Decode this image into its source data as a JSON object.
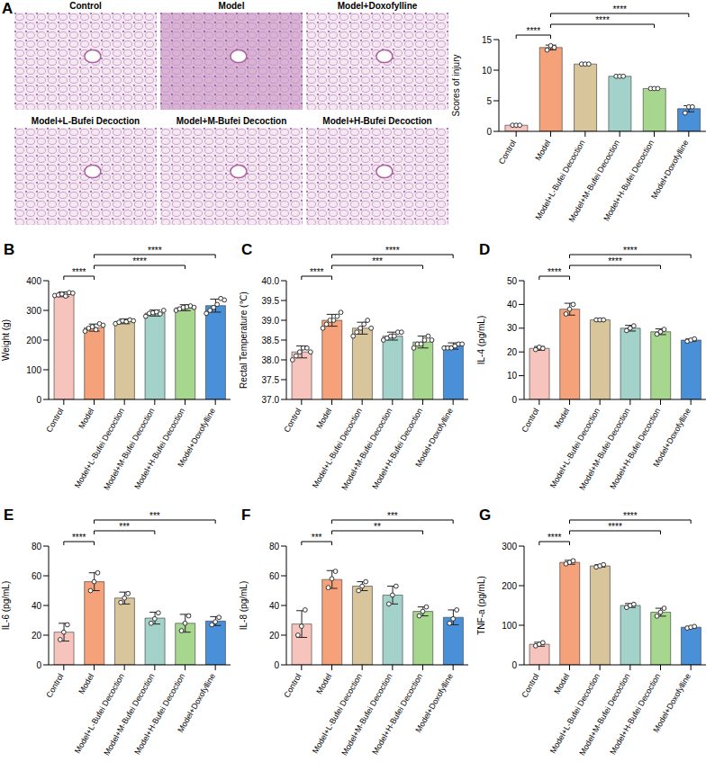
{
  "micrographs": {
    "panel_label": "A",
    "titles": [
      "Control",
      "Model",
      "Model+Doxofylline",
      "Model+L-Bufei Decoction",
      "Model+M-Bufei Decoction",
      "Model+H-Bufei Decoction"
    ]
  },
  "chart_data": [
    {
      "type": "bar",
      "y_label": "Scores of injury",
      "categories": [
        "Control",
        "Model",
        "Model+L-Bufei Decoction",
        "Model+M-Bufei Decoction",
        "Model+H-Bufei Decoction",
        "Model+Doxofylline"
      ],
      "values": [
        1,
        13.7,
        11,
        9,
        7,
        3.7
      ],
      "errors": [
        0,
        0.4,
        0,
        0,
        0,
        0.5
      ],
      "points": [
        [
          1,
          1,
          1
        ],
        [
          13.3,
          14,
          13.7
        ],
        [
          11,
          11,
          11
        ],
        [
          9,
          9,
          9
        ],
        [
          7,
          7,
          7
        ],
        [
          3,
          4,
          4
        ]
      ],
      "colors": [
        "#f7c4bd",
        "#f5a27a",
        "#d9c59b",
        "#a3d2cb",
        "#a7d78f",
        "#4a90d9"
      ],
      "ylim": [
        0,
        15
      ],
      "yticks": [
        0,
        5,
        10,
        15
      ],
      "comparisons": [
        {
          "from": "Control",
          "to": "Model",
          "label": "****"
        },
        {
          "from": "Model",
          "to": "Model+H-Bufei Decoction",
          "label": "****"
        },
        {
          "from": "Model",
          "to": "Model+Doxofylline",
          "label": "****"
        }
      ]
    },
    {
      "type": "bar",
      "panel_label": "B",
      "y_label": "Weight (g)",
      "categories": [
        "Control",
        "Model",
        "Model+L-Bufei Decoction",
        "Model+M-Bufei Decoction",
        "Model+H-Bufei Decoction",
        "Model+Doxofylline"
      ],
      "values": [
        354,
        242,
        263,
        291,
        309,
        316
      ],
      "errors": [
        8,
        12,
        8,
        10,
        10,
        22
      ],
      "points": [
        [
          350,
          352,
          355,
          348,
          360,
          358
        ],
        [
          230,
          240,
          245,
          235,
          255,
          250
        ],
        [
          255,
          260,
          265,
          262,
          268,
          265
        ],
        [
          280,
          290,
          292,
          295,
          288,
          300
        ],
        [
          300,
          305,
          310,
          312,
          315,
          310
        ],
        [
          290,
          300,
          310,
          320,
          340,
          335
        ]
      ],
      "colors": [
        "#f7c4bd",
        "#f5a27a",
        "#d9c59b",
        "#a3d2cb",
        "#a7d78f",
        "#4a90d9"
      ],
      "ylim": [
        0,
        400
      ],
      "yticks": [
        0,
        100,
        200,
        300,
        400
      ],
      "comparisons": [
        {
          "from": "Control",
          "to": "Model",
          "label": "****"
        },
        {
          "from": "Model",
          "to": "Model+H-Bufei Decoction",
          "label": "****"
        },
        {
          "from": "Model",
          "to": "Model+Doxofylline",
          "label": "****"
        }
      ]
    },
    {
      "type": "bar",
      "panel_label": "C",
      "y_label": "Rectal Temperature (℃)",
      "categories": [
        "Control",
        "Model",
        "Model+L-Bufei Decoction",
        "Model+M-Bufei Decoction",
        "Model+H-Bufei Decoction",
        "Model+Doxofylline"
      ],
      "values": [
        38.2,
        39.0,
        38.8,
        38.6,
        38.45,
        38.35
      ],
      "errors": [
        0.15,
        0.15,
        0.15,
        0.1,
        0.15,
        0.08
      ],
      "points": [
        [
          38.0,
          38.1,
          38.2,
          38.3,
          38.3,
          38.2
        ],
        [
          38.8,
          38.9,
          39.0,
          39.0,
          39.1,
          39.2
        ],
        [
          38.6,
          38.7,
          38.8,
          38.9,
          39.0,
          38.8
        ],
        [
          38.5,
          38.55,
          38.6,
          38.6,
          38.7,
          38.7
        ],
        [
          38.3,
          38.4,
          38.4,
          38.5,
          38.6,
          38.5
        ],
        [
          38.3,
          38.3,
          38.3,
          38.35,
          38.4,
          38.4
        ]
      ],
      "colors": [
        "#f7c4bd",
        "#f5a27a",
        "#d9c59b",
        "#a3d2cb",
        "#a7d78f",
        "#4a90d9"
      ],
      "ylim": [
        37,
        40
      ],
      "yticks": [
        {
          "value": 37,
          "label": "37.0"
        },
        37.5,
        {
          "value": 38,
          "label": "38.0"
        },
        38.5,
        {
          "value": 39,
          "label": "39.0"
        },
        39.5,
        {
          "value": 40,
          "label": "40.0"
        }
      ],
      "comparisons": [
        {
          "from": "Control",
          "to": "Model",
          "label": "****"
        },
        {
          "from": "Model",
          "to": "Model+H-Bufei Decoction",
          "label": "***"
        },
        {
          "from": "Model",
          "to": "Model+Doxofylline",
          "label": "****"
        }
      ]
    },
    {
      "type": "bar",
      "panel_label": "D",
      "y_label": "IL-4 (pg/mL)",
      "categories": [
        "Control",
        "Model",
        "Model+L-Bufei Decoction",
        "Model+M-Bufei Decoction",
        "Model+H-Bufei Decoction",
        "Model+Doxofylline"
      ],
      "values": [
        21.5,
        38,
        33.5,
        30,
        28.5,
        25
      ],
      "errors": [
        0.8,
        2.5,
        0.5,
        1.2,
        1.2,
        0.5
      ],
      "points": [
        [
          21,
          22,
          21.5
        ],
        [
          36,
          38,
          40
        ],
        [
          33.5,
          33.5,
          33.5
        ],
        [
          29,
          30,
          31
        ],
        [
          27.5,
          28.5,
          29.5
        ],
        [
          24.5,
          25,
          25.5
        ]
      ],
      "colors": [
        "#f7c4bd",
        "#f5a27a",
        "#d9c59b",
        "#a3d2cb",
        "#a7d78f",
        "#4a90d9"
      ],
      "ylim": [
        0,
        50
      ],
      "yticks": [
        0,
        10,
        20,
        30,
        40,
        50
      ],
      "comparisons": [
        {
          "from": "Control",
          "to": "Model",
          "label": "****"
        },
        {
          "from": "Model",
          "to": "Model+H-Bufei Decoction",
          "label": "****"
        },
        {
          "from": "Model",
          "to": "Model+Doxofylline",
          "label": "****"
        }
      ]
    },
    {
      "type": "bar",
      "panel_label": "E",
      "y_label": "IL-6 (pg/mL)",
      "categories": [
        "Control",
        "Model",
        "Model+L-Bufei Decoction",
        "Model+M-Bufei Decoction",
        "Model+H-Bufei Decoction",
        "Model+Doxofylline"
      ],
      "values": [
        22,
        56,
        45,
        31.5,
        28,
        29.5
      ],
      "errors": [
        6,
        6,
        4,
        4,
        6,
        3
      ],
      "points": [
        [
          17,
          22,
          27
        ],
        [
          50,
          56,
          62
        ],
        [
          42,
          45,
          48
        ],
        [
          28,
          31,
          35
        ],
        [
          23,
          28,
          33
        ],
        [
          27,
          29,
          32
        ]
      ],
      "colors": [
        "#f7c4bd",
        "#f5a27a",
        "#d9c59b",
        "#a3d2cb",
        "#a7d78f",
        "#4a90d9"
      ],
      "ylim": [
        0,
        80
      ],
      "yticks": [
        0,
        20,
        40,
        60,
        80
      ],
      "comparisons": [
        {
          "from": "Control",
          "to": "Model",
          "label": "****"
        },
        {
          "from": "Model",
          "to": "Model+M-Bufei Decoction",
          "label": "***"
        },
        {
          "from": "Model",
          "to": "Model+Doxofylline",
          "label": "***"
        }
      ]
    },
    {
      "type": "bar",
      "panel_label": "F",
      "y_label": "IL-8 (pg/mL)",
      "categories": [
        "Control",
        "Model",
        "Model+L-Bufei Decoction",
        "Model+M-Bufei Decoction",
        "Model+H-Bufei Decoction",
        "Model+Doxofylline"
      ],
      "values": [
        27.5,
        57.5,
        53,
        47,
        36,
        32
      ],
      "errors": [
        9,
        6,
        3,
        6,
        3,
        5
      ],
      "points": [
        [
          20,
          26,
          37
        ],
        [
          52,
          58,
          63
        ],
        [
          50,
          53,
          56
        ],
        [
          41,
          47,
          53
        ],
        [
          33,
          36,
          39
        ],
        [
          28,
          31,
          37
        ]
      ],
      "colors": [
        "#f7c4bd",
        "#f5a27a",
        "#d9c59b",
        "#a3d2cb",
        "#a7d78f",
        "#4a90d9"
      ],
      "ylim": [
        0,
        80
      ],
      "yticks": [
        0,
        20,
        40,
        60,
        80
      ],
      "comparisons": [
        {
          "from": "Control",
          "to": "Model",
          "label": "***"
        },
        {
          "from": "Model",
          "to": "Model+H-Bufei Decoction",
          "label": "**"
        },
        {
          "from": "Model",
          "to": "Model+Doxofylline",
          "label": "***"
        }
      ]
    },
    {
      "type": "bar",
      "panel_label": "G",
      "y_label": "TNF-a (pg/mL)",
      "categories": [
        "Control",
        "Model",
        "Model+L-Bufei Decoction",
        "Model+M-Bufei Decoction",
        "Model+H-Bufei Decoction",
        "Model+Doxofylline"
      ],
      "values": [
        52,
        259,
        250,
        150,
        133,
        95
      ],
      "errors": [
        5,
        5,
        3,
        5,
        10,
        2
      ],
      "points": [
        [
          48,
          52,
          56
        ],
        [
          255,
          259,
          263
        ],
        [
          247,
          250,
          253
        ],
        [
          145,
          150,
          153
        ],
        [
          123,
          133,
          143
        ],
        [
          93,
          95,
          97
        ]
      ],
      "colors": [
        "#f7c4bd",
        "#f5a27a",
        "#d9c59b",
        "#a3d2cb",
        "#a7d78f",
        "#4a90d9"
      ],
      "ylim": [
        0,
        300
      ],
      "yticks": [
        0,
        100,
        200,
        300
      ],
      "comparisons": [
        {
          "from": "Control",
          "to": "Model",
          "label": "****"
        },
        {
          "from": "Model",
          "to": "Model+H-Bufei Decoction",
          "label": "****"
        },
        {
          "from": "Model",
          "to": "Model+Doxofylline",
          "label": "****"
        }
      ]
    }
  ]
}
